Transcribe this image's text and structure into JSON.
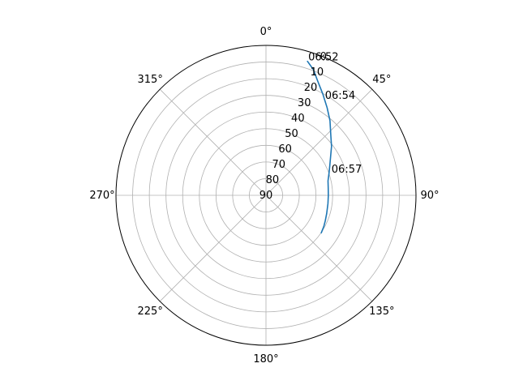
{
  "chart_data": {
    "type": "line",
    "title": "",
    "projection": "polar",
    "theta_zero_location": "N",
    "theta_direction": "clockwise",
    "radial_axis": "elevation",
    "r_inverted": true,
    "rlim": [
      90,
      0
    ],
    "r_ticks": [
      0,
      10,
      20,
      30,
      40,
      50,
      60,
      70,
      80,
      90
    ],
    "r_tick_labels": [
      "0",
      "10",
      "20",
      "30",
      "40",
      "50",
      "60",
      "70",
      "80",
      "90"
    ],
    "theta_ticks": [
      0,
      45,
      90,
      135,
      180,
      225,
      270,
      315
    ],
    "theta_tick_labels": [
      "0°",
      "45°",
      "90°",
      "135°",
      "180°",
      "225°",
      "270°",
      "315°"
    ],
    "grid": true,
    "series": [
      {
        "color": "#1f77b4",
        "azimuth_deg": [
          17.2,
          20.6,
          24.4,
          29.3,
          34.9,
          40.6,
          46.8,
          53.2,
          58.7,
          65.1,
          70.3,
          76.9,
          83.2,
          90.0,
          97.6,
          106.5,
          113.1,
          118.3,
          124.2
        ],
        "elevation_deg": [
          5.8,
          9.3,
          14.8,
          20.3,
          25.9,
          31.0,
          36.7,
          40.9,
          44.6,
          47.8,
          49.8,
          51.8,
          52.4,
          52.6,
          52.5,
          52.0,
          51.3,
          50.6,
          49.9
        ]
      }
    ],
    "annotations": [
      {
        "text": "06:52",
        "azimuth_deg": 17.0,
        "elevation_deg": 3.3
      },
      {
        "text": "06:54",
        "azimuth_deg": 30.6,
        "elevation_deg": 20.5
      },
      {
        "text": "06:57",
        "azimuth_deg": 68.3,
        "elevation_deg": 47.7
      }
    ]
  }
}
